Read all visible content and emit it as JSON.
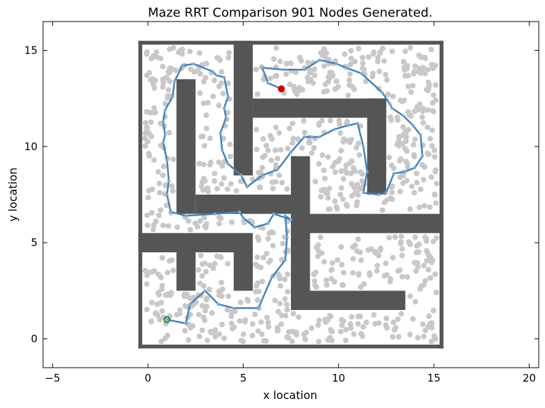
{
  "chart_data": {
    "type": "scatter",
    "title": "Maze RRT Comparison 901 Nodes Generated.",
    "xlabel": "x location",
    "ylabel": "y location",
    "xlim": [
      -5.5,
      20.5
    ],
    "ylim": [
      -1.5,
      16.5
    ],
    "xticks": [
      -5,
      0,
      5,
      10,
      15,
      20
    ],
    "yticks": [
      0,
      5,
      10,
      15
    ],
    "grid": false,
    "colors": {
      "nodes": "#c8c8c8",
      "walls": "#555555",
      "path": "#4682b4",
      "start": "#2e7d32",
      "goal": "#d40000"
    },
    "node_count": 901,
    "boundary": {
      "x": [
        -0.5,
        15.5
      ],
      "y": [
        -0.5,
        15.5
      ]
    },
    "walls": [
      {
        "x": [
          -0.5,
          15.5
        ],
        "y": [
          -0.5,
          -0.3
        ]
      },
      {
        "x": [
          -0.5,
          15.5
        ],
        "y": [
          15.3,
          15.5
        ]
      },
      {
        "x": [
          -0.5,
          -0.3
        ],
        "y": [
          -0.5,
          15.5
        ]
      },
      {
        "x": [
          15.3,
          15.5
        ],
        "y": [
          -0.5,
          15.5
        ]
      },
      {
        "x": [
          4.5,
          5.5
        ],
        "y": [
          8.5,
          15.5
        ]
      },
      {
        "x": [
          5.5,
          12.5
        ],
        "y": [
          11.5,
          12.5
        ]
      },
      {
        "x": [
          11.5,
          12.5
        ],
        "y": [
          7.5,
          12.5
        ]
      },
      {
        "x": [
          1.5,
          2.5
        ],
        "y": [
          6.5,
          13.5
        ]
      },
      {
        "x": [
          2.5,
          7.5
        ],
        "y": [
          6.5,
          7.5
        ]
      },
      {
        "x": [
          7.5,
          8.5
        ],
        "y": [
          1.5,
          9.5
        ]
      },
      {
        "x": [
          8.5,
          15.5
        ],
        "y": [
          5.5,
          6.5
        ]
      },
      {
        "x": [
          8.5,
          13.5
        ],
        "y": [
          1.5,
          2.5
        ]
      },
      {
        "x": [
          -0.5,
          5.5
        ],
        "y": [
          4.5,
          5.5
        ]
      },
      {
        "x": [
          1.5,
          2.5
        ],
        "y": [
          2.5,
          4.5
        ]
      },
      {
        "x": [
          4.5,
          5.5
        ],
        "y": [
          2.5,
          4.5
        ]
      }
    ],
    "path": [
      [
        1.0,
        1.0
      ],
      [
        2.0,
        0.8
      ],
      [
        2.2,
        1.8
      ],
      [
        3.0,
        2.5
      ],
      [
        3.7,
        1.8
      ],
      [
        4.5,
        1.6
      ],
      [
        5.8,
        1.6
      ],
      [
        6.5,
        3.2
      ],
      [
        7.2,
        4.1
      ],
      [
        7.3,
        5.3
      ],
      [
        7.2,
        6.4
      ],
      [
        7.5,
        6.2
      ],
      [
        6.6,
        6.5
      ],
      [
        6.3,
        6.0
      ],
      [
        5.6,
        5.8
      ],
      [
        5.0,
        6.3
      ],
      [
        4.8,
        6.6
      ],
      [
        3.5,
        6.5
      ],
      [
        2.0,
        6.4
      ],
      [
        1.2,
        6.6
      ],
      [
        1.0,
        7.5
      ],
      [
        1.1,
        8.2
      ],
      [
        1.0,
        9.3
      ],
      [
        0.8,
        10.2
      ],
      [
        0.9,
        10.6
      ],
      [
        0.8,
        11.3
      ],
      [
        0.9,
        11.9
      ],
      [
        1.3,
        12.6
      ],
      [
        1.4,
        13.4
      ],
      [
        1.8,
        14.2
      ],
      [
        2.4,
        14.3
      ],
      [
        3.4,
        13.9
      ],
      [
        3.6,
        13.7
      ],
      [
        4.0,
        13.6
      ],
      [
        4.2,
        12.6
      ],
      [
        4.0,
        12.0
      ],
      [
        4.1,
        11.5
      ],
      [
        3.8,
        10.7
      ],
      [
        3.9,
        9.8
      ],
      [
        4.2,
        9.1
      ],
      [
        4.9,
        8.5
      ],
      [
        5.2,
        7.9
      ],
      [
        6.0,
        8.5
      ],
      [
        6.8,
        8.8
      ],
      [
        7.5,
        9.7
      ],
      [
        8.2,
        10.5
      ],
      [
        8.6,
        10.5
      ],
      [
        9.0,
        10.5
      ],
      [
        9.8,
        10.9
      ],
      [
        10.5,
        11.1
      ],
      [
        11.0,
        11.2
      ],
      [
        11.3,
        10.0
      ],
      [
        11.5,
        8.7
      ],
      [
        11.3,
        7.6
      ],
      [
        12.1,
        7.5
      ],
      [
        12.5,
        7.6
      ],
      [
        12.9,
        8.6
      ],
      [
        13.5,
        8.7
      ],
      [
        14.0,
        8.9
      ],
      [
        14.4,
        9.5
      ],
      [
        14.3,
        10.6
      ],
      [
        13.9,
        11.1
      ],
      [
        13.4,
        11.6
      ],
      [
        12.8,
        12.0
      ],
      [
        12.7,
        12.2
      ],
      [
        12.3,
        12.8
      ],
      [
        11.2,
        13.8
      ],
      [
        10.4,
        14.1
      ],
      [
        9.9,
        14.3
      ],
      [
        9.0,
        14.5
      ],
      [
        8.2,
        14.0
      ],
      [
        7.1,
        14.0
      ],
      [
        6.0,
        14.1
      ],
      [
        6.3,
        13.3
      ],
      [
        7.0,
        13.0
      ]
    ],
    "start": [
      1.0,
      1.0
    ],
    "goal": [
      7.0,
      13.0
    ]
  }
}
